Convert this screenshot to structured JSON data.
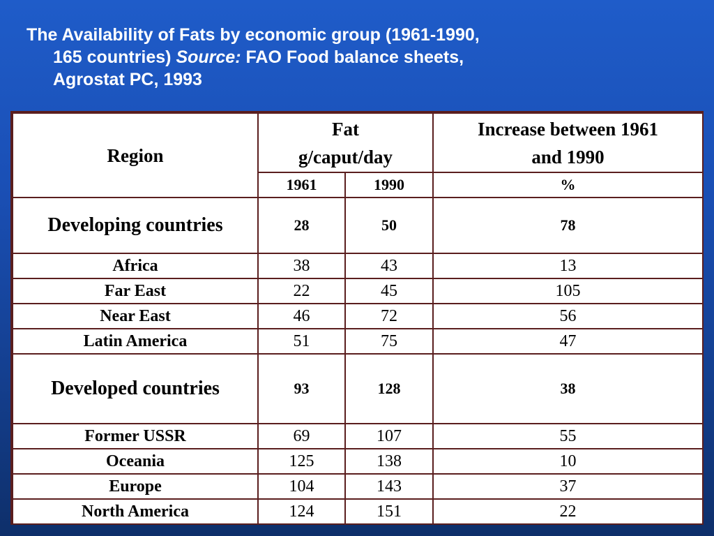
{
  "title": {
    "line1": "The Availability of Fats by economic group (1961-1990,",
    "line2_plain": "165 countries) ",
    "line2_italic": "Source:",
    "line2_rest": " FAO Food balance sheets,",
    "line3": "Agrostat PC, 1993"
  },
  "table": {
    "header": {
      "region": "Region",
      "fat_line1": "Fat",
      "fat_line2": "g/caput/day",
      "increase_line1": "Increase between 1961",
      "increase_line2": "and 1990",
      "year1": "1961",
      "year2": "1990",
      "percent": "%"
    },
    "rows": [
      {
        "region": "Developing countries",
        "v1961": "28",
        "v1990": "50",
        "increase": "78"
      },
      {
        "region": "Africa",
        "v1961": "38",
        "v1990": "43",
        "increase": "13"
      },
      {
        "region": "Far East",
        "v1961": "22",
        "v1990": "45",
        "increase": "105"
      },
      {
        "region": "Near East",
        "v1961": "46",
        "v1990": "72",
        "increase": "56"
      },
      {
        "region": "Latin America",
        "v1961": "51",
        "v1990": "75",
        "increase": "47"
      },
      {
        "region": "Developed countries",
        "v1961": "93",
        "v1990": "128",
        "increase": "38"
      },
      {
        "region": "Former USSR",
        "v1961": "69",
        "v1990": "107",
        "increase": "55"
      },
      {
        "region": "Oceania",
        "v1961": "125",
        "v1990": "138",
        "increase": "10"
      },
      {
        "region": "Europe",
        "v1961": "104",
        "v1990": "143",
        "increase": "37"
      },
      {
        "region": "North America",
        "v1961": "124",
        "v1990": "151",
        "increase": "22"
      }
    ]
  }
}
